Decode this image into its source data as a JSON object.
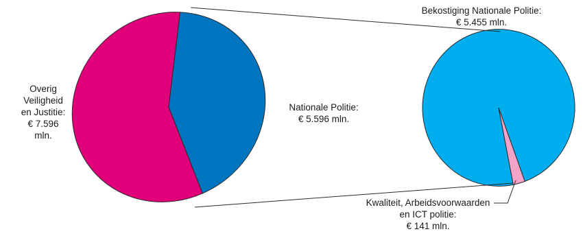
{
  "chart_data": {
    "type": "pie",
    "title": "",
    "main_pie": {
      "slices": [
        {
          "label_lines": [
            "Overig",
            "Veiligheid",
            "en Justitie:",
            "€ 7.596",
            "mln."
          ],
          "value": 7596,
          "color": "#e2007a"
        },
        {
          "label_lines": [
            "Nationale Politie:",
            "€ 5.596 mln."
          ],
          "value": 5596,
          "color": "#0075bf"
        }
      ],
      "exploded_slice_index": 1
    },
    "detail_pie": {
      "slices": [
        {
          "label_lines": [
            "Bekostiging Nationale Politie:",
            "€ 5.455 mln."
          ],
          "value": 5455,
          "color": "#00aeef"
        },
        {
          "label_lines": [
            "Kwaliteit, Arbeidsvoorwaarden",
            "en ICT politie:",
            "€ 141 mln."
          ],
          "value": 141,
          "color": "#f5a3c7"
        }
      ]
    }
  }
}
